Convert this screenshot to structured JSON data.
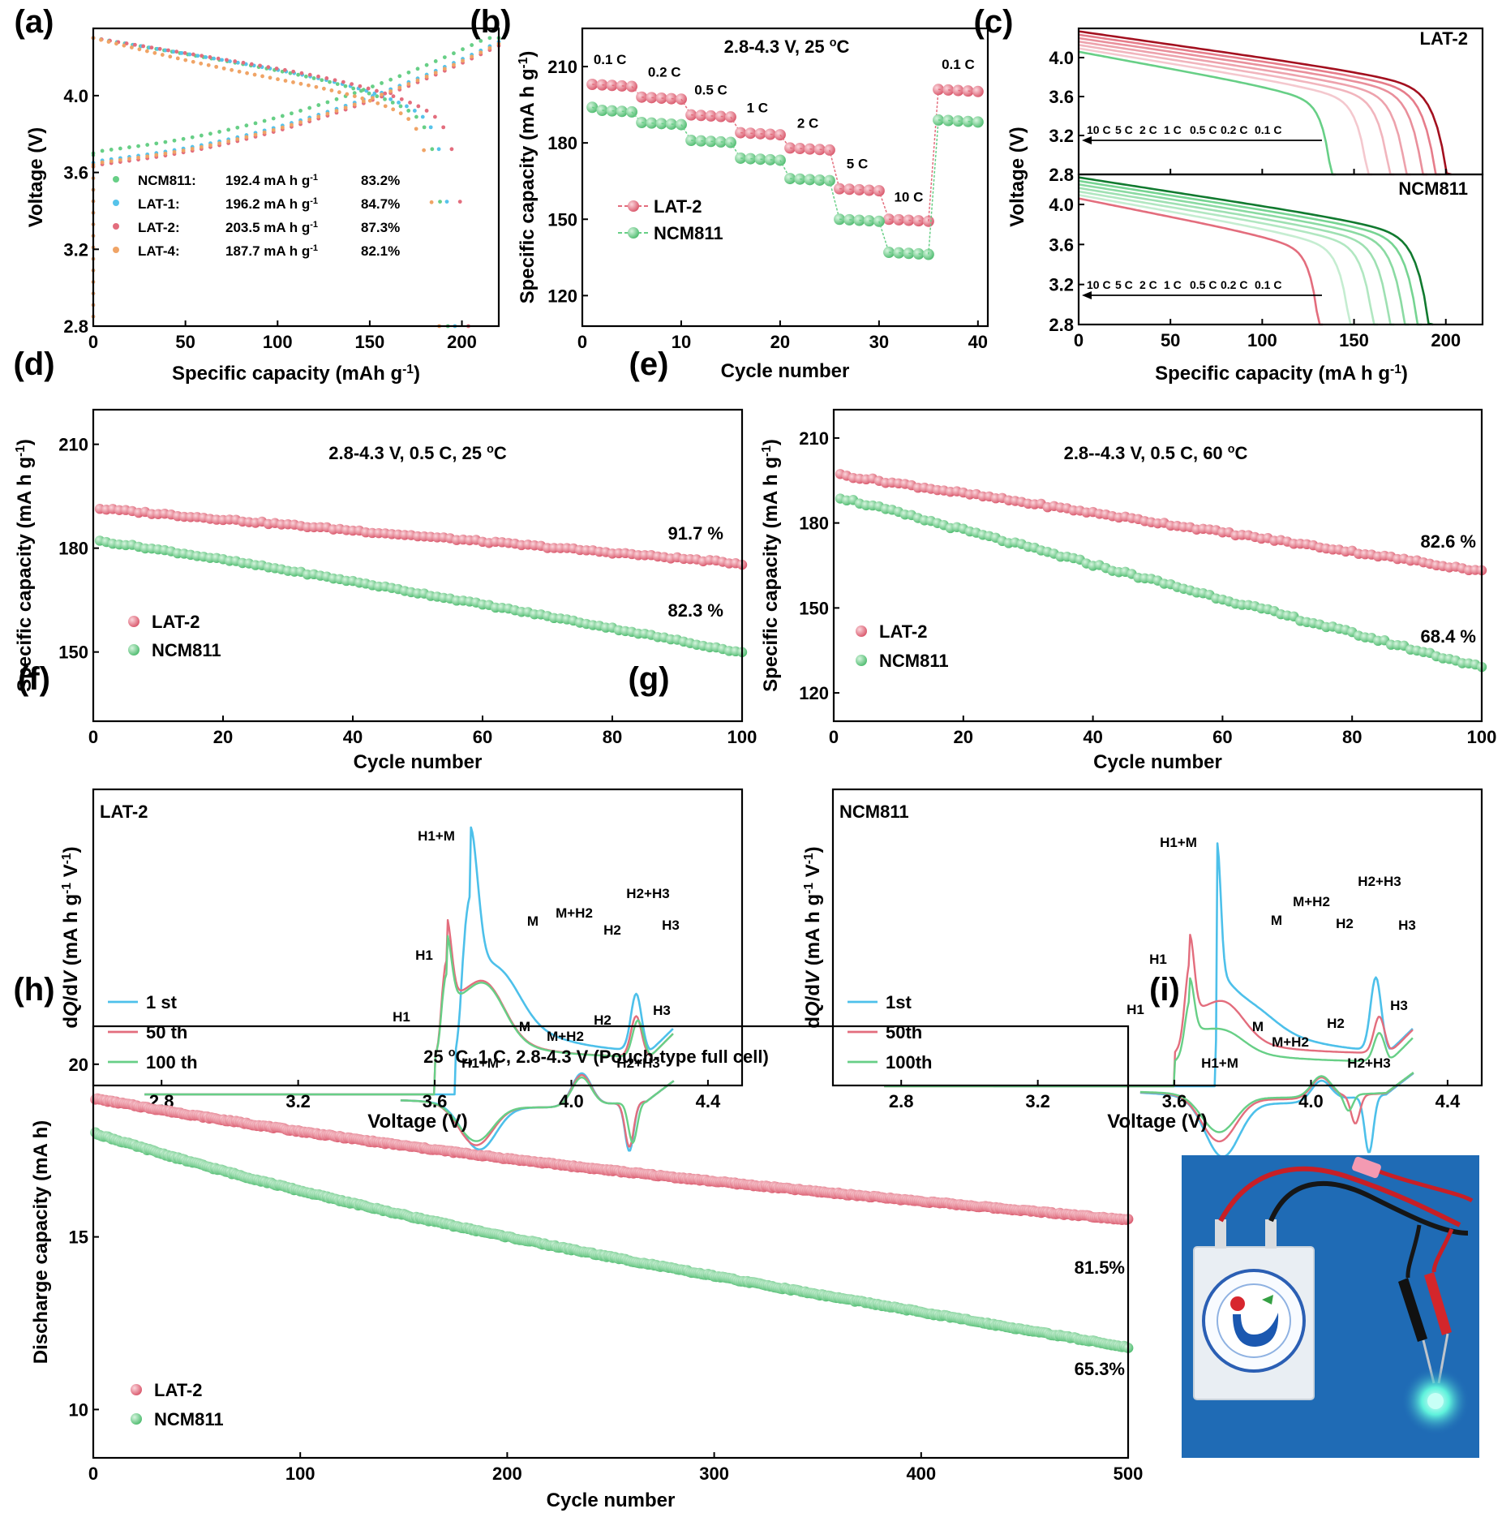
{
  "colors": {
    "lat2": "#e36d7d",
    "ncm811": "#67cf86",
    "lat1": "#56c3ea",
    "lat4": "#f0a466",
    "first_cycle": "#4dc0ea",
    "photo_bg": "#1f6bb5"
  },
  "panel_labels": [
    "(a)",
    "(b)",
    "(c)",
    "(d)",
    "(e)",
    "(f)",
    "(g)",
    "(h)",
    "(i)"
  ],
  "chart_data": [
    {
      "id": "a",
      "type": "line",
      "title": "",
      "xlabel": "Specific capacity (mAh g-1)",
      "ylabel": "Voltage (V)",
      "xlim": [
        0,
        220
      ],
      "ylim": [
        2.8,
        4.35
      ],
      "xticks": [
        0,
        50,
        100,
        150,
        200
      ],
      "yticks": [
        2.8,
        3.2,
        3.6,
        4.0
      ],
      "legend": [
        {
          "name": "NCM811:",
          "capacity": "192.4 mA h g",
          "efficiency": "83.2%"
        },
        {
          "name": "LAT-1:",
          "capacity": "196.2 mA h g",
          "efficiency": "84.7%"
        },
        {
          "name": "LAT-2:",
          "capacity": "203.5 mA h g",
          "efficiency": "87.3%"
        },
        {
          "name": "LAT-4:",
          "capacity": "187.7 mA h g",
          "efficiency": "82.1%"
        }
      ],
      "series": [
        {
          "name": "NCM811",
          "discharge_capacity": 192.4,
          "plateau_v": 3.72,
          "charge_start_v": 3.7
        },
        {
          "name": "LAT-1",
          "discharge_capacity": 196.2,
          "plateau_v": 3.7,
          "charge_start_v": 3.65
        },
        {
          "name": "LAT-2",
          "discharge_capacity": 203.5,
          "plateau_v": 3.73,
          "charge_start_v": 3.63
        },
        {
          "name": "LAT-4",
          "discharge_capacity": 187.7,
          "plateau_v": 3.7,
          "charge_start_v": 3.64
        }
      ]
    },
    {
      "id": "b",
      "type": "scatter",
      "title": "2.8-4.3 V, 25 °C",
      "xlabel": "Cycle number",
      "ylabel": "Specific capacity (mA h g-1)",
      "xlim": [
        0,
        41
      ],
      "ylim": [
        108,
        225
      ],
      "xticks": [
        0,
        10,
        20,
        30,
        40
      ],
      "yticks": [
        120,
        150,
        180,
        210
      ],
      "rate_labels": [
        "0.1 C",
        "0.2 C",
        "0.5 C",
        "1 C",
        "2 C",
        "5 C",
        "10 C",
        "0.1 C"
      ],
      "series": [
        {
          "name": "LAT-2",
          "stage_values": [
            203,
            198,
            191,
            184,
            178,
            162,
            150,
            201
          ]
        },
        {
          "name": "NCM811",
          "stage_values": [
            193,
            188,
            181,
            174,
            166,
            150,
            137,
            189
          ]
        }
      ]
    },
    {
      "id": "c",
      "type": "line",
      "xlabel": "Specific capacity (mA h g-1)",
      "ylabel": "Voltage (V)",
      "xlim": [
        0,
        220
      ],
      "ylim": [
        2.8,
        4.35
      ],
      "xticks": [
        0,
        50,
        100,
        150,
        200
      ],
      "yticks": [
        2.8,
        3.2,
        3.6,
        4.0
      ],
      "rates": [
        "10 C",
        "5 C",
        "2 C",
        "1 C",
        "0.5 C",
        "0.2 C",
        "0.1 C"
      ],
      "subplots": [
        {
          "name": "LAT-2",
          "end_capacities": [
            140,
            160,
            172,
            181,
            190,
            197,
            203
          ]
        },
        {
          "name": "NCM811",
          "end_capacities": [
            133,
            150,
            163,
            172,
            180,
            187,
            193
          ]
        }
      ]
    },
    {
      "id": "d",
      "type": "scatter",
      "title": "2.8-4.3 V, 0.5 C, 25 °C",
      "xlabel": "Cycle number",
      "ylabel": "Specific capacity (mA h g-1)",
      "xlim": [
        0,
        100
      ],
      "ylim": [
        130,
        220
      ],
      "xticks": [
        0,
        20,
        40,
        60,
        80,
        100
      ],
      "yticks": [
        150,
        180,
        210
      ],
      "series": [
        {
          "name": "LAT-2",
          "start": 191.4,
          "end": 175.5,
          "retention": "91.7 %"
        },
        {
          "name": "NCM811",
          "start": 182.0,
          "end": 149.8,
          "retention": "82.3 %"
        }
      ]
    },
    {
      "id": "e",
      "type": "scatter",
      "title": "2.8--4.3 V, 0.5 C, 60 °C",
      "xlabel": "Cycle number",
      "ylabel": "Specific capacity (mA h g-1)",
      "xlim": [
        0,
        100
      ],
      "ylim": [
        110,
        220
      ],
      "xticks": [
        0,
        20,
        40,
        60,
        80,
        100
      ],
      "yticks": [
        120,
        150,
        180,
        210
      ],
      "series": [
        {
          "name": "LAT-2",
          "start": 197,
          "end": 163,
          "retention": "82.6 %"
        },
        {
          "name": "NCM811",
          "start": 189,
          "end": 129,
          "retention": "68.4 %"
        }
      ]
    },
    {
      "id": "f",
      "type": "line",
      "inset_title": "LAT-2",
      "xlabel": "Voltage (V)",
      "ylabel": "dQ/dV (mA h g-1 V-1)",
      "xlim": [
        2.6,
        4.5
      ],
      "xticks": [
        2.8,
        3.2,
        3.6,
        4.0,
        4.4
      ],
      "legend": [
        "1 st",
        "50 th",
        "100 th"
      ],
      "peak_labels_charge": [
        "H1+M",
        "M",
        "M+H2",
        "H2",
        "H2+H3",
        "H3",
        "H1"
      ],
      "peak_labels_discharge": [
        "H1",
        "M",
        "M+H2",
        "H2",
        "H3",
        "H1+M",
        "H2+H3"
      ]
    },
    {
      "id": "g",
      "type": "line",
      "inset_title": "NCM811",
      "xlabel": "Voltage (V)",
      "ylabel": "dQ/dV (mA h g-1 V-1)",
      "xlim": [
        2.6,
        4.5
      ],
      "xticks": [
        2.8,
        3.2,
        3.6,
        4.0,
        4.4
      ],
      "legend": [
        "1st",
        "50th",
        "100th"
      ],
      "peak_labels_charge": [
        "H1+M",
        "M+H2",
        "M",
        "H2",
        "H2+H3",
        "H3",
        "H1"
      ],
      "peak_labels_discharge": [
        "H1",
        "M",
        "M+H2",
        "H2",
        "H3",
        "H1+M",
        "H2+H3"
      ]
    },
    {
      "id": "h",
      "type": "scatter",
      "title": "25 °C, 1 C, 2.8-4.3 V (Pouch-type full cell)",
      "xlabel": "Cycle number",
      "ylabel": "Discharge capacity (mA h)",
      "xlim": [
        0,
        500
      ],
      "ylim": [
        8.6,
        21.1
      ],
      "xticks": [
        0,
        100,
        200,
        300,
        400,
        500
      ],
      "yticks": [
        10,
        15,
        20
      ],
      "series": [
        {
          "name": "LAT-2",
          "start": 19.0,
          "end": 15.5,
          "retention": "81.5%"
        },
        {
          "name": "NCM811",
          "start": 18.0,
          "end": 11.8,
          "retention": "65.3%"
        }
      ]
    }
  ],
  "photo": {
    "panel": "(i)",
    "description_icon": "pouch-cell-led-photo"
  }
}
